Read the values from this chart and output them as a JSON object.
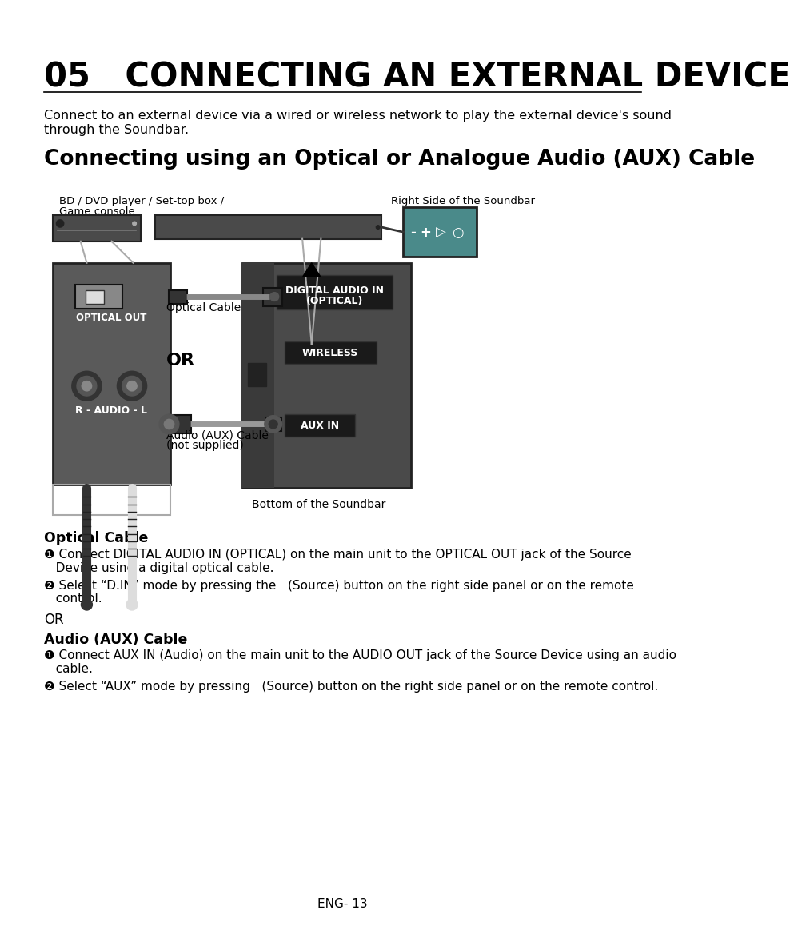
{
  "bg_color": "#ffffff",
  "page_title": "05   CONNECTING AN EXTERNAL DEVICE",
  "intro_line1": "Connect to an external device via a wired or wireless network to play the external device's sound",
  "intro_line2": "through the Soundbar.",
  "section_title": "Connecting using an Optical or Analogue Audio (AUX) Cable",
  "label_bd": "BD / DVD player / Set-top box /",
  "label_bd2": "Game console",
  "label_right_side": "Right Side of the Soundbar",
  "label_optical_out": "OPTICAL OUT",
  "label_optical_cable": "Optical Cable",
  "label_or_diagram": "OR",
  "label_r_audio_l": "R - AUDIO - L",
  "label_aux_cable": "Audio (AUX) Cable",
  "label_aux_cable2": "(not supplied)",
  "label_bottom_soundbar": "Bottom of the Soundbar",
  "label_digital_audio_ln1": "DIGITAL AUDIO IN",
  "label_digital_audio_ln2": "(OPTICAL)",
  "label_wireless": "WIRELESS",
  "label_aux_in": "AUX IN",
  "optical_cable_header": "Optical Cable",
  "optical_step1a": "❶ Connect DIGITAL AUDIO IN (OPTICAL) on the main unit to the OPTICAL OUT jack of the Source",
  "optical_step1b": "   Device using a digital optical cable.",
  "optical_step2a": "❷ Select “D.IN” mode by pressing the   (Source) button on the right side panel or on the remote",
  "optical_step2b": "   control.",
  "or_text": "OR",
  "aux_cable_header": "Audio (AUX) Cable",
  "aux_step1a": "❶ Connect AUX IN (Audio) on the main unit to the AUDIO OUT jack of the Source Device using an audio",
  "aux_step1b": "   cable.",
  "aux_step2": "❷ Select “AUX” mode by pressing   (Source) button on the right side panel or on the remote control.",
  "footer": "ENG- 13",
  "dark_gray": "#555555",
  "mid_gray": "#666666",
  "light_gray": "#999999",
  "dark_box": "#3a3a3a",
  "label_box_dark": "#222222",
  "teal_color": "#4a8a8a",
  "connector_gray": "#444444"
}
